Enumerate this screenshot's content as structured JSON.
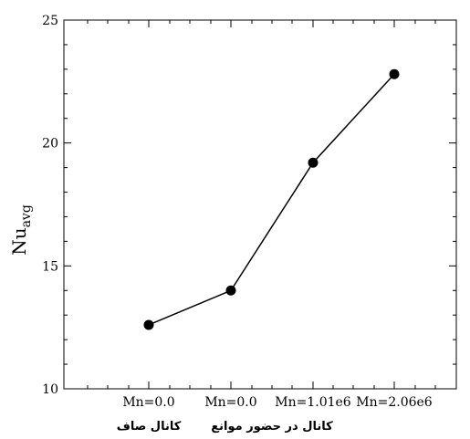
{
  "chart_data": {
    "type": "line",
    "categories": [
      "Mn=0.0",
      "Mn=0.0",
      "Mn=1.01e6",
      "Mn=2.06e6"
    ],
    "values": [
      12.6,
      14.0,
      19.2,
      22.8
    ],
    "group_labels": [
      "کانال صاف",
      "کانال در حضور موانع"
    ],
    "ylabel_main": "Nu",
    "ylabel_sub": "avg",
    "ylim": [
      10,
      25
    ],
    "yticks": [
      "10",
      "15",
      "20",
      "25"
    ],
    "grid": false,
    "colors": {
      "line": "#000000",
      "marker": "#000000"
    }
  }
}
